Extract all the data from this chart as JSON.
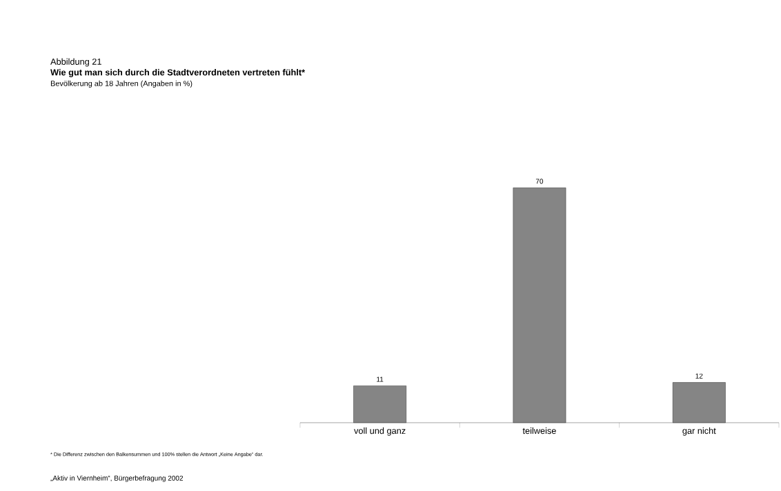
{
  "chart_data": {
    "type": "bar",
    "title": "Wie gut man sich durch die Stadtverordneten vertreten fühlt*",
    "subtitle": "Bevölkerung ab 18 Jahren (Angaben in %)",
    "annotations": [
      "Abbildung 21",
      "* Die Differenz zwischen den Balkensummen und 100% stellen die Antwort „Keine Angabe“ dar.",
      "„Aktiv in Viernheim“, Bürgerbefragung 2002"
    ],
    "categories": [
      "voll und ganz",
      "teilweise",
      "gar nicht"
    ],
    "values": [
      11,
      70,
      12
    ],
    "color": "#858585",
    "data_labels": true
  }
}
